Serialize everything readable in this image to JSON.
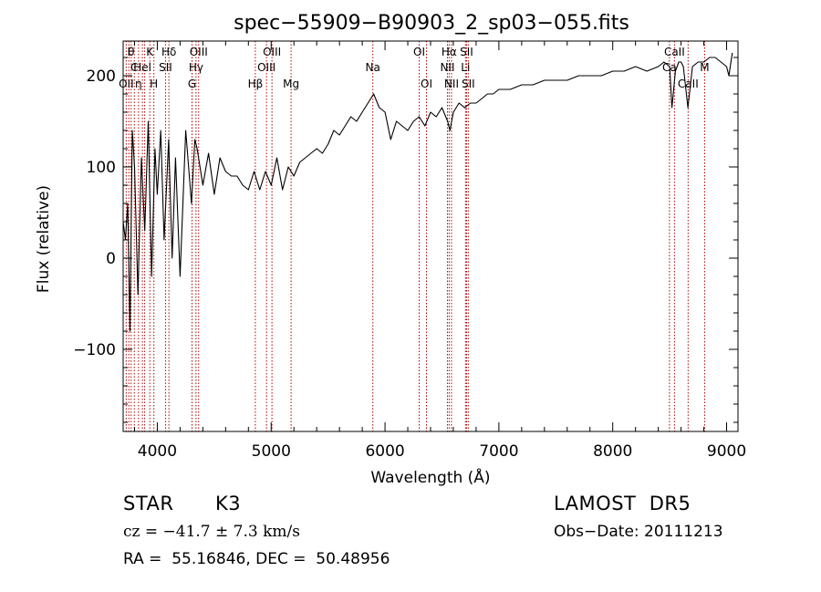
{
  "chart_data": {
    "type": "line",
    "title": "spec−55909−B90903_2_sp03−055.fits",
    "xlabel": "Wavelength (Å)",
    "ylabel": "Flux (relative)",
    "xlim": [
      3700,
      9100
    ],
    "ylim": [
      -190,
      238
    ],
    "x_ticks": [
      4000,
      5000,
      6000,
      7000,
      8000,
      9000
    ],
    "y_ticks": [
      -100,
      0,
      100,
      200
    ],
    "x_tick_labels": [
      "4000",
      "5000",
      "6000",
      "7000",
      "8000",
      "9000"
    ],
    "y_tick_labels": [
      "−100",
      "0",
      "100",
      "200"
    ],
    "grid": false,
    "series": [
      {
        "color": "#000000",
        "x": [
          3700,
          3720,
          3740,
          3760,
          3780,
          3800,
          3830,
          3860,
          3890,
          3920,
          3950,
          3980,
          4000,
          4030,
          4060,
          4100,
          4130,
          4160,
          4200,
          4250,
          4300,
          4330,
          4350,
          4400,
          4450,
          4500,
          4550,
          4600,
          4650,
          4700,
          4750,
          4800,
          4850,
          4900,
          4950,
          5000,
          5050,
          5100,
          5150,
          5200,
          5250,
          5300,
          5350,
          5400,
          5450,
          5500,
          5550,
          5600,
          5650,
          5700,
          5750,
          5800,
          5850,
          5900,
          5950,
          6000,
          6050,
          6100,
          6150,
          6200,
          6250,
          6300,
          6350,
          6400,
          6450,
          6500,
          6550,
          6570,
          6600,
          6650,
          6700,
          6750,
          6800,
          6850,
          6900,
          6950,
          7000,
          7100,
          7200,
          7300,
          7400,
          7500,
          7600,
          7700,
          7800,
          7900,
          8000,
          8100,
          8200,
          8300,
          8400,
          8450,
          8500,
          8520,
          8550,
          8580,
          8600,
          8620,
          8660,
          8700,
          8750,
          8800,
          8850,
          8900,
          8950,
          9000,
          9020,
          9050
        ],
        "y": [
          40,
          20,
          60,
          -80,
          140,
          100,
          -40,
          110,
          30,
          150,
          -20,
          120,
          70,
          140,
          20,
          130,
          0,
          110,
          -20,
          140,
          60,
          130,
          120,
          80,
          115,
          70,
          110,
          95,
          90,
          90,
          80,
          75,
          95,
          75,
          95,
          80,
          110,
          75,
          100,
          90,
          105,
          110,
          115,
          120,
          115,
          125,
          140,
          135,
          145,
          155,
          150,
          160,
          170,
          180,
          165,
          160,
          130,
          150,
          145,
          140,
          150,
          155,
          145,
          160,
          155,
          165,
          150,
          140,
          160,
          170,
          165,
          170,
          170,
          175,
          180,
          180,
          185,
          185,
          190,
          190,
          195,
          195,
          195,
          200,
          200,
          200,
          205,
          205,
          210,
          205,
          210,
          215,
          210,
          165,
          205,
          215,
          215,
          210,
          165,
          210,
          215,
          215,
          220,
          220,
          215,
          210,
          200,
          225
        ]
      }
    ],
    "lines": [
      {
        "x": 3727,
        "labels": [
          "OII"
        ],
        "rows": [
          3
        ]
      },
      {
        "x": 3750,
        "labels": [
          "I"
        ],
        "rows": [
          1
        ]
      },
      {
        "x": 3770,
        "labels": [
          "θ"
        ],
        "rows": [
          1
        ]
      },
      {
        "x": 3798,
        "labels": [
          "C"
        ],
        "rows": [
          2
        ]
      },
      {
        "x": 3835,
        "labels": [
          "η"
        ],
        "rows": [
          3
        ]
      },
      {
        "x": 3869,
        "labels": [
          "Hel"
        ],
        "rows": [
          2
        ]
      },
      {
        "x": 3889,
        "labels": [],
        "rows": []
      },
      {
        "x": 3934,
        "labels": [
          "K"
        ],
        "rows": [
          1
        ]
      },
      {
        "x": 3970,
        "labels": [
          "H"
        ],
        "rows": [
          3
        ]
      },
      {
        "x": 4072,
        "labels": [
          "SII"
        ],
        "rows": [
          2
        ]
      },
      {
        "x": 4102,
        "labels": [
          "Hδ"
        ],
        "rows": [
          1
        ]
      },
      {
        "x": 4305,
        "labels": [
          "G"
        ],
        "rows": [
          3
        ]
      },
      {
        "x": 4340,
        "labels": [
          "Hγ"
        ],
        "rows": [
          2
        ]
      },
      {
        "x": 4363,
        "labels": [
          "OIII"
        ],
        "rows": [
          1
        ]
      },
      {
        "x": 4861,
        "labels": [
          "Hβ"
        ],
        "rows": [
          3
        ]
      },
      {
        "x": 4959,
        "labels": [
          "OIII"
        ],
        "rows": [
          2
        ]
      },
      {
        "x": 5007,
        "labels": [
          "OIII"
        ],
        "rows": [
          1
        ]
      },
      {
        "x": 5175,
        "labels": [
          "Mg"
        ],
        "rows": [
          3
        ]
      },
      {
        "x": 5893,
        "labels": [
          "Na"
        ],
        "rows": [
          2
        ]
      },
      {
        "x": 6300,
        "labels": [
          "OI"
        ],
        "rows": [
          1
        ]
      },
      {
        "x": 6364,
        "labels": [
          "OI"
        ],
        "rows": [
          3
        ]
      },
      {
        "x": 6548,
        "labels": [
          "NII"
        ],
        "rows": [
          2
        ]
      },
      {
        "x": 6563,
        "labels": [
          "Hα"
        ],
        "rows": [
          1
        ]
      },
      {
        "x": 6584,
        "labels": [
          "NII"
        ],
        "rows": [
          3
        ]
      },
      {
        "x": 6707,
        "labels": [
          "Li"
        ],
        "rows": [
          2
        ]
      },
      {
        "x": 6716,
        "labels": [
          "SII"
        ],
        "rows": [
          1
        ]
      },
      {
        "x": 6731,
        "labels": [
          "SII"
        ],
        "rows": [
          3
        ]
      },
      {
        "x": 8498,
        "labels": [
          "Ca"
        ],
        "rows": [
          2
        ]
      },
      {
        "x": 8542,
        "labels": [
          "CaII"
        ],
        "rows": [
          1
        ]
      },
      {
        "x": 8662,
        "labels": [
          "CaII"
        ],
        "rows": [
          3
        ]
      },
      {
        "x": 8807,
        "labels": [
          "M"
        ],
        "rows": [
          2
        ]
      }
    ]
  },
  "info": {
    "class_label": "STAR",
    "subclass_label": "K3",
    "survey": "LAMOST  DR5",
    "cz": "cz = −41.7 ± 7.3 km/s",
    "obs_date": "Obs−Date: 20111213",
    "radec": "RA =  55.16846, DEC =  50.48956"
  }
}
